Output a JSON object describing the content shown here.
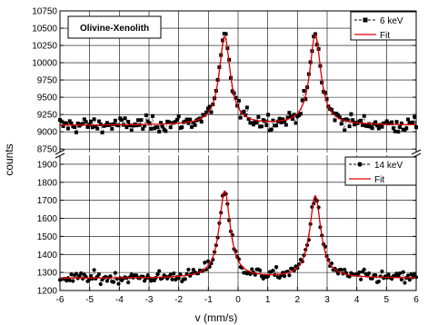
{
  "chart_data": {
    "type": "scatter",
    "title": "Olivine-Xenolith",
    "xlabel": "v (mm/s)",
    "ylabel": "counts",
    "xlim": [
      -6,
      6
    ],
    "x_ticks": [
      "-6",
      "-5",
      "-4",
      "-3",
      "-2",
      "-1",
      "0",
      "1",
      "2",
      "3",
      "4",
      "5",
      "6"
    ],
    "grid": true,
    "legend_position": "top-right",
    "panels": [
      {
        "id": "upper",
        "ylim": [
          8700,
          10750
        ],
        "y_ticks": [
          "8750",
          "9000",
          "9250",
          "9500",
          "9750",
          "10000",
          "10250",
          "10500",
          "10750"
        ],
        "baseline": 9095,
        "noise": 55,
        "peaks": [
          {
            "center": -0.45,
            "height": 1275,
            "fwhm": 0.45
          },
          {
            "center": 2.6,
            "height": 1305,
            "fwhm": 0.45
          }
        ],
        "series": [
          {
            "name": "6 keV",
            "marker": "square",
            "line": "dashed",
            "color": "#000000"
          },
          {
            "name": "Fit",
            "marker": "none",
            "line": "solid",
            "color": "#e00000"
          }
        ]
      },
      {
        "id": "lower",
        "ylim": [
          1200,
          1950
        ],
        "y_ticks": [
          "1200",
          "1300",
          "1400",
          "1500",
          "1600",
          "1700",
          "1800",
          "1900"
        ],
        "baseline": 1268,
        "noise": 16,
        "peaks": [
          {
            "center": -0.45,
            "height": 482,
            "fwhm": 0.45
          },
          {
            "center": 2.6,
            "height": 455,
            "fwhm": 0.45
          }
        ],
        "series": [
          {
            "name": "14 keV",
            "marker": "circle",
            "line": "dashed",
            "color": "#000000"
          },
          {
            "name": "Fit",
            "marker": "none",
            "line": "solid",
            "color": "#e00000"
          }
        ]
      }
    ]
  }
}
